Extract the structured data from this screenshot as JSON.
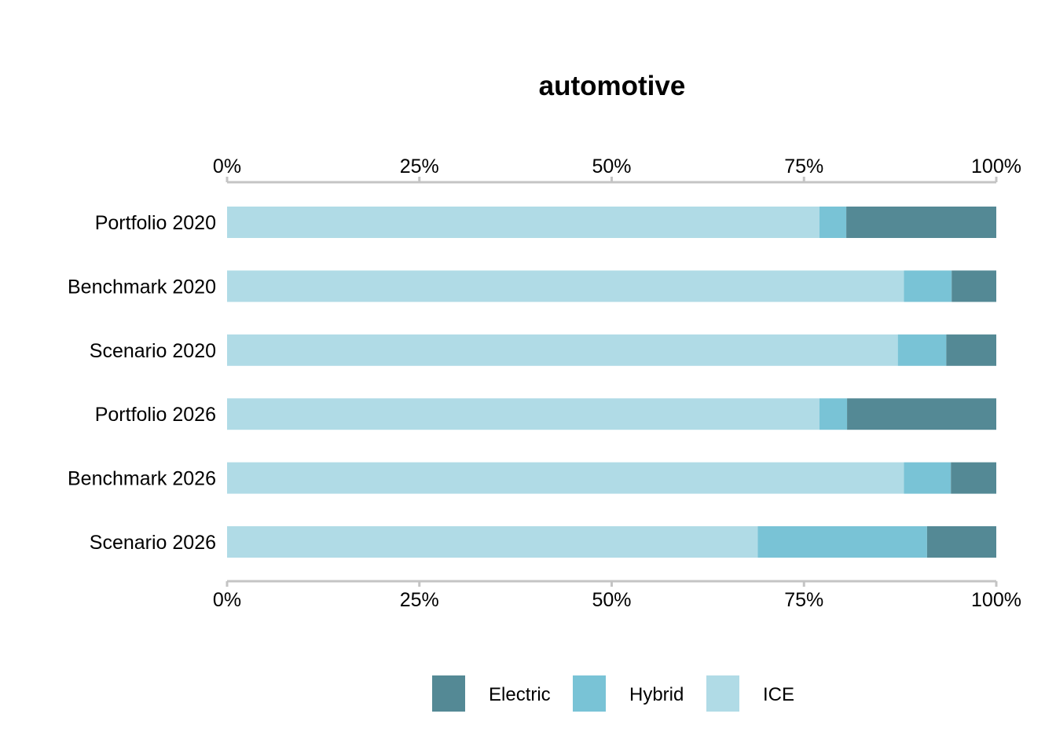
{
  "chart_data": {
    "type": "bar",
    "orientation": "horizontal",
    "stacked": true,
    "title": "automotive",
    "xlabel": "",
    "ylabel": "",
    "xlim": [
      0,
      100
    ],
    "x_ticks": [
      "0%",
      "25%",
      "50%",
      "75%",
      "100%"
    ],
    "x_tick_values": [
      0,
      25,
      50,
      75,
      100
    ],
    "x_axis_position": "top and bottom",
    "grid": false,
    "legend_position": "bottom",
    "categories": [
      "Portfolio 2020",
      "Benchmark 2020",
      "Scenario 2020",
      "Portfolio 2026",
      "Benchmark 2026",
      "Scenario 2026"
    ],
    "series": [
      {
        "name": "ICE",
        "color": "#b0dbe6",
        "values": [
          77,
          88,
          87.2,
          77,
          88,
          69
        ]
      },
      {
        "name": "Hybrid",
        "color": "#79c3d6",
        "values": [
          3.5,
          6.2,
          6.3,
          3.6,
          6.1,
          22
        ]
      },
      {
        "name": "Electric",
        "color": "#548995",
        "values": [
          19.5,
          5.8,
          6.5,
          19.4,
          5.9,
          9
        ]
      }
    ],
    "legend": [
      "Electric",
      "Hybrid",
      "ICE"
    ]
  }
}
